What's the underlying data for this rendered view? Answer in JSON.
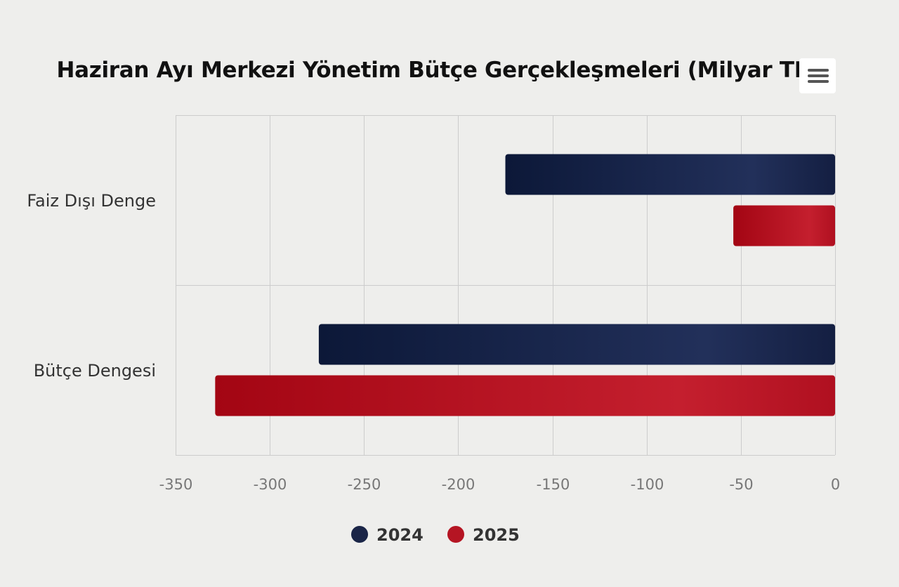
{
  "chart": {
    "title": "Haziran Ayı Merkezi Yönetim Bütçe Gerçekleşmeleri (Milyar TL.)",
    "menu_icon": "hamburger-menu-icon"
  },
  "chart_data": {
    "type": "bar",
    "orientation": "horizontal",
    "title": "Haziran Ayı Merkezi Yönetim Bütçe Gerçekleşmeleri (Milyar TL.)",
    "xlabel": "",
    "ylabel": "",
    "categories": [
      "Faiz Dışı Denge",
      "Bütçe Dengesi"
    ],
    "series": [
      {
        "name": "2024",
        "color": "#1a2547",
        "values": [
          -175,
          -274
        ]
      },
      {
        "name": "2025",
        "color": "#b51523",
        "values": [
          -54,
          -329
        ]
      }
    ],
    "xlim": [
      -350,
      0
    ],
    "ticks": [
      "-350",
      "-300",
      "-250",
      "-200",
      "-150",
      "-100",
      "-50",
      "0"
    ],
    "grid": true,
    "legend_position": "bottom"
  }
}
